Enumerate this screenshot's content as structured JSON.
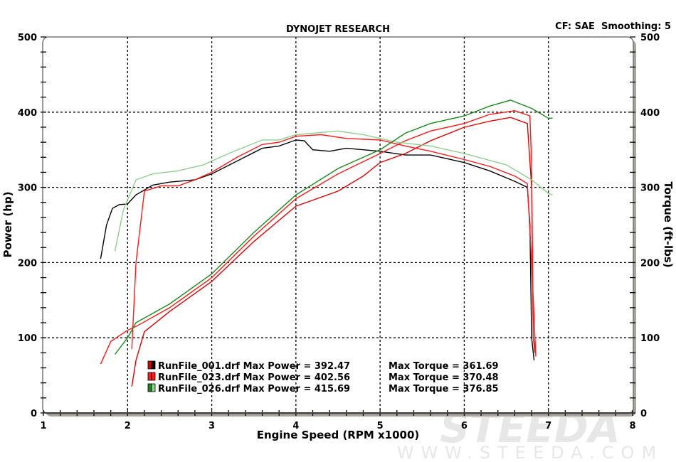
{
  "chart_data": {
    "type": "line",
    "title": "DYNOJET RESEARCH",
    "subtitle": "CF: SAE  Smoothing: 5",
    "xlabel": "Engine Speed (RPM x1000)",
    "ylabel": "Power (hp)",
    "y2label": "Torque (ft-lbs)",
    "xlim": [
      1,
      8
    ],
    "ylim": [
      0,
      500
    ],
    "y2lim": [
      0,
      500
    ],
    "xticks": [
      "1",
      "2",
      "3",
      "4",
      "5",
      "6",
      "7",
      "8"
    ],
    "yticks": [
      "0",
      "100",
      "200",
      "300",
      "400",
      "500"
    ],
    "grid": true,
    "legend_placement": "bottom-left",
    "legend": [
      {
        "file": "RunFile_001.drf",
        "power_label": "Max Power = 392.47",
        "torque_label": "Max Torque = 361.69",
        "colors": [
          "#e00000",
          "#000000"
        ]
      },
      {
        "file": "RunFile_023.drf",
        "power_label": "Max Power = 402.56",
        "torque_label": "Max Torque = 370.48",
        "colors": [
          "#ff1a1a",
          "#ff1a1a"
        ]
      },
      {
        "file": "RunFile_026.drf",
        "power_label": "Max Power = 415.69",
        "torque_label": "Max Torque = 376.85",
        "colors": [
          "#1a8a1a",
          "#8fcf8f"
        ]
      }
    ],
    "series": [
      {
        "run": "RunFile_001.drf",
        "measure": "torque",
        "color": "#000000",
        "x": [
          1.68,
          1.75,
          1.82,
          1.9,
          2.0,
          2.1,
          2.3,
          2.5,
          2.8,
          3.0,
          3.3,
          3.6,
          3.8,
          4.0,
          4.1,
          4.2,
          4.4,
          4.6,
          4.8,
          5.0,
          5.3,
          5.6,
          6.0,
          6.3,
          6.6,
          6.75,
          6.78,
          6.8,
          6.83
        ],
        "y": [
          205,
          250,
          272,
          277,
          278,
          290,
          303,
          307,
          310,
          318,
          335,
          352,
          355,
          363,
          362,
          350,
          348,
          352,
          350,
          348,
          343,
          343,
          333,
          322,
          308,
          300,
          250,
          100,
          70
        ]
      },
      {
        "run": "RunFile_001.drf",
        "measure": "power",
        "color": "#e00000",
        "x": [
          2.05,
          2.1,
          2.2,
          2.5,
          3.0,
          3.5,
          4.0,
          4.2,
          4.5,
          4.8,
          5.0,
          5.3,
          5.6,
          6.0,
          6.3,
          6.55,
          6.75,
          6.8,
          6.82,
          6.84
        ],
        "y": [
          35,
          70,
          108,
          135,
          175,
          228,
          275,
          283,
          295,
          315,
          333,
          345,
          362,
          380,
          388,
          393,
          385,
          300,
          100,
          80
        ]
      },
      {
        "run": "RunFile_023.drf",
        "measure": "torque",
        "color": "#ff1a1a",
        "x": [
          2.05,
          2.1,
          2.2,
          2.4,
          2.6,
          2.8,
          3.0,
          3.3,
          3.6,
          3.8,
          4.0,
          4.3,
          4.6,
          5.0,
          5.3,
          5.6,
          6.0,
          6.3,
          6.6,
          6.75,
          6.8,
          6.85
        ],
        "y": [
          85,
          200,
          295,
          302,
          302,
          310,
          320,
          340,
          357,
          360,
          368,
          370,
          365,
          363,
          355,
          348,
          337,
          328,
          315,
          305,
          200,
          75
        ]
      },
      {
        "run": "RunFile_023.drf",
        "measure": "power",
        "color": "#ff1a1a",
        "x": [
          1.68,
          1.8,
          2.0,
          2.1,
          2.5,
          3.0,
          3.5,
          4.0,
          4.5,
          5.0,
          5.3,
          5.6,
          6.0,
          6.3,
          6.6,
          6.78,
          6.8,
          6.82,
          6.85
        ],
        "y": [
          65,
          95,
          110,
          115,
          140,
          180,
          235,
          285,
          318,
          345,
          362,
          375,
          385,
          397,
          402,
          395,
          330,
          100,
          80
        ]
      },
      {
        "run": "RunFile_026.drf",
        "measure": "torque",
        "color": "#8fcf8f",
        "x": [
          1.85,
          1.95,
          2.1,
          2.3,
          2.6,
          2.9,
          3.2,
          3.6,
          3.8,
          4.0,
          4.5,
          4.8,
          5.2,
          5.6,
          6.0,
          6.5,
          6.8,
          7.0,
          7.05
        ],
        "y": [
          215,
          270,
          310,
          318,
          322,
          330,
          345,
          363,
          363,
          370,
          375,
          370,
          360,
          355,
          345,
          330,
          310,
          292,
          290
        ]
      },
      {
        "run": "RunFile_026.drf",
        "measure": "power",
        "color": "#1a8a1a",
        "x": [
          1.85,
          2.0,
          2.1,
          2.5,
          3.0,
          3.5,
          4.0,
          4.5,
          5.0,
          5.3,
          5.6,
          6.0,
          6.3,
          6.55,
          6.8,
          7.0,
          7.05
        ],
        "y": [
          78,
          100,
          120,
          145,
          185,
          240,
          290,
          325,
          350,
          372,
          385,
          395,
          408,
          416,
          405,
          392,
          392
        ]
      }
    ]
  },
  "watermark": {
    "brand": "STEEDA",
    "url": "WWW.STEEDA.COM"
  }
}
